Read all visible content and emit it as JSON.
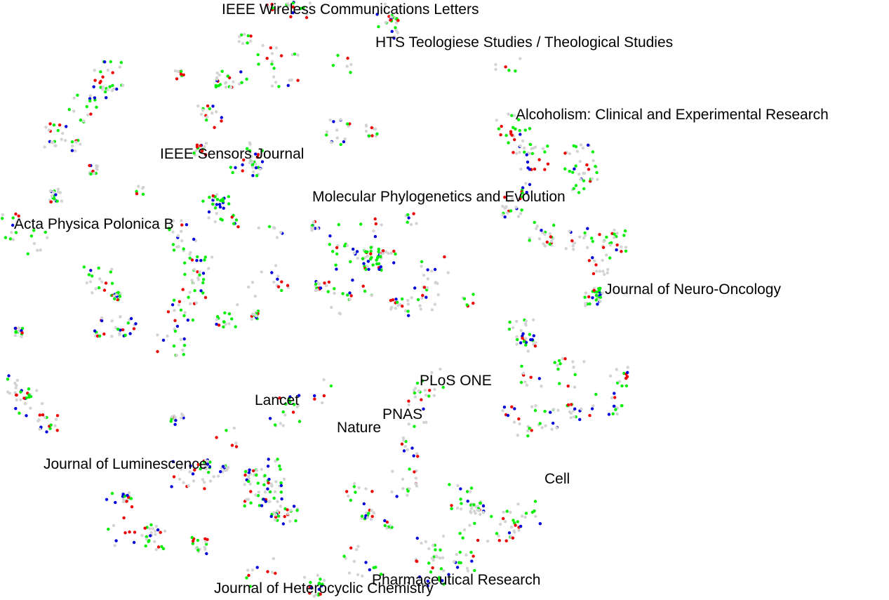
{
  "chart_data": {
    "type": "scatter",
    "colors": {
      "grey": "#d3d3d3",
      "green": "#00ee00",
      "blue": "#0000dd",
      "red": "#ee0000"
    },
    "labels": [
      {
        "text": "IEEE Wireless Communications Letters"
      },
      {
        "text": "HTS Teologiese Studies / Theological Studies"
      },
      {
        "text": "Alcoholism: Clinical and Experimental Research"
      },
      {
        "text": "IEEE Sensors Journal"
      },
      {
        "text": "Molecular Phylogenetics and Evolution"
      },
      {
        "text": "Acta Physica Polonica B"
      },
      {
        "text": "Journal of Neuro-Oncology"
      },
      {
        "text": "PLoS ONE"
      },
      {
        "text": "Lancet"
      },
      {
        "text": "PNAS"
      },
      {
        "text": "Nature"
      },
      {
        "text": "Journal of Luminescence"
      },
      {
        "text": "Cell"
      },
      {
        "text": "Pharmaceutical Research"
      },
      {
        "text": "Journal of Heterocyclic Chemistry"
      }
    ],
    "grid": false,
    "legend": "none"
  }
}
